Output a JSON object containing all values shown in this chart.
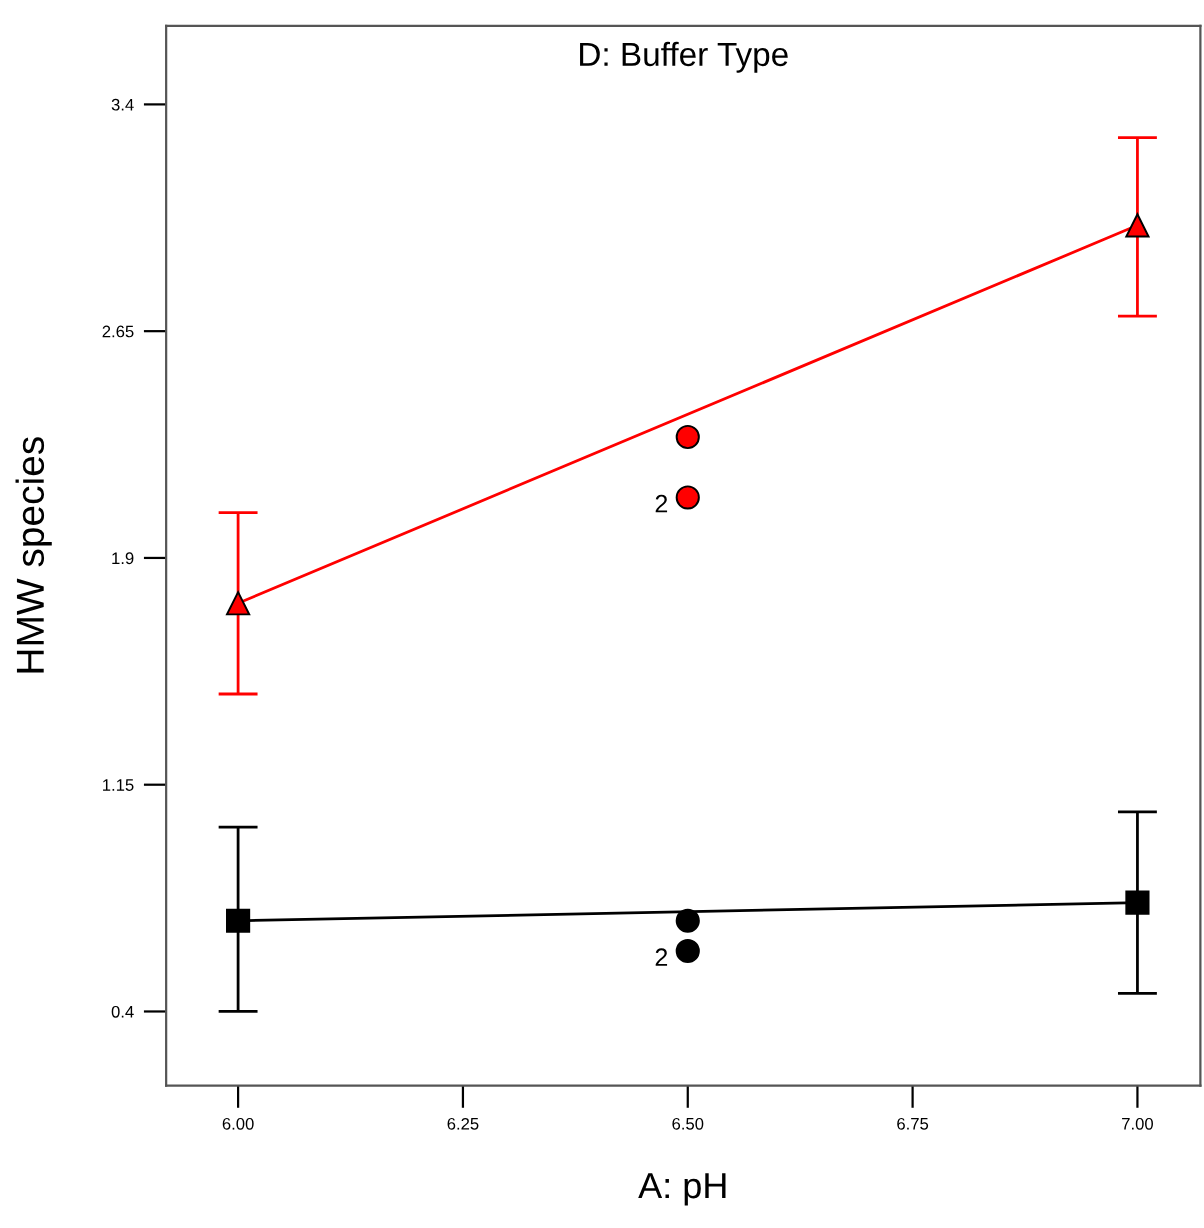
{
  "chart_data": {
    "type": "line",
    "title": "D: Buffer Type",
    "xlabel": "A: pH",
    "ylabel": "HMW species",
    "xlim": [
      5.92,
      7.07
    ],
    "ylim": [
      0.155,
      3.66
    ],
    "xticks": [
      {
        "value": 6.0,
        "label": "6.00"
      },
      {
        "value": 6.25,
        "label": "6.25"
      },
      {
        "value": 6.5,
        "label": "6.50"
      },
      {
        "value": 6.75,
        "label": "6.75"
      },
      {
        "value": 7.0,
        "label": "7.00"
      }
    ],
    "yticks": [
      0.4,
      1.15,
      1.9,
      2.65,
      3.4
    ],
    "grid": false,
    "series": [
      {
        "color": "#ff0000",
        "marker": "triangle",
        "x": [
          6.0,
          7.0
        ],
        "values": [
          1.75,
          3.0
        ],
        "errors": [
          [
            1.45,
            2.05
          ],
          [
            2.7,
            3.29
          ]
        ]
      },
      {
        "type": "scatter",
        "color": "#ff0000",
        "marker": "circle",
        "x": [
          6.5,
          6.5
        ],
        "values": [
          2.3,
          2.1
        ]
      },
      {
        "color": "#000000",
        "marker": "square",
        "x": [
          6.0,
          7.0
        ],
        "values": [
          0.7,
          0.76
        ],
        "errors": [
          [
            0.4,
            1.01
          ],
          [
            0.46,
            1.06
          ]
        ]
      },
      {
        "type": "scatter",
        "color": "#000000",
        "marker": "circle",
        "x": [
          6.5,
          6.5
        ],
        "values": [
          0.7,
          0.6
        ]
      }
    ],
    "annotations": [
      {
        "text": "2",
        "x": 6.5,
        "y": 2.1
      },
      {
        "text": "2",
        "x": 6.5,
        "y": 0.6
      }
    ]
  }
}
